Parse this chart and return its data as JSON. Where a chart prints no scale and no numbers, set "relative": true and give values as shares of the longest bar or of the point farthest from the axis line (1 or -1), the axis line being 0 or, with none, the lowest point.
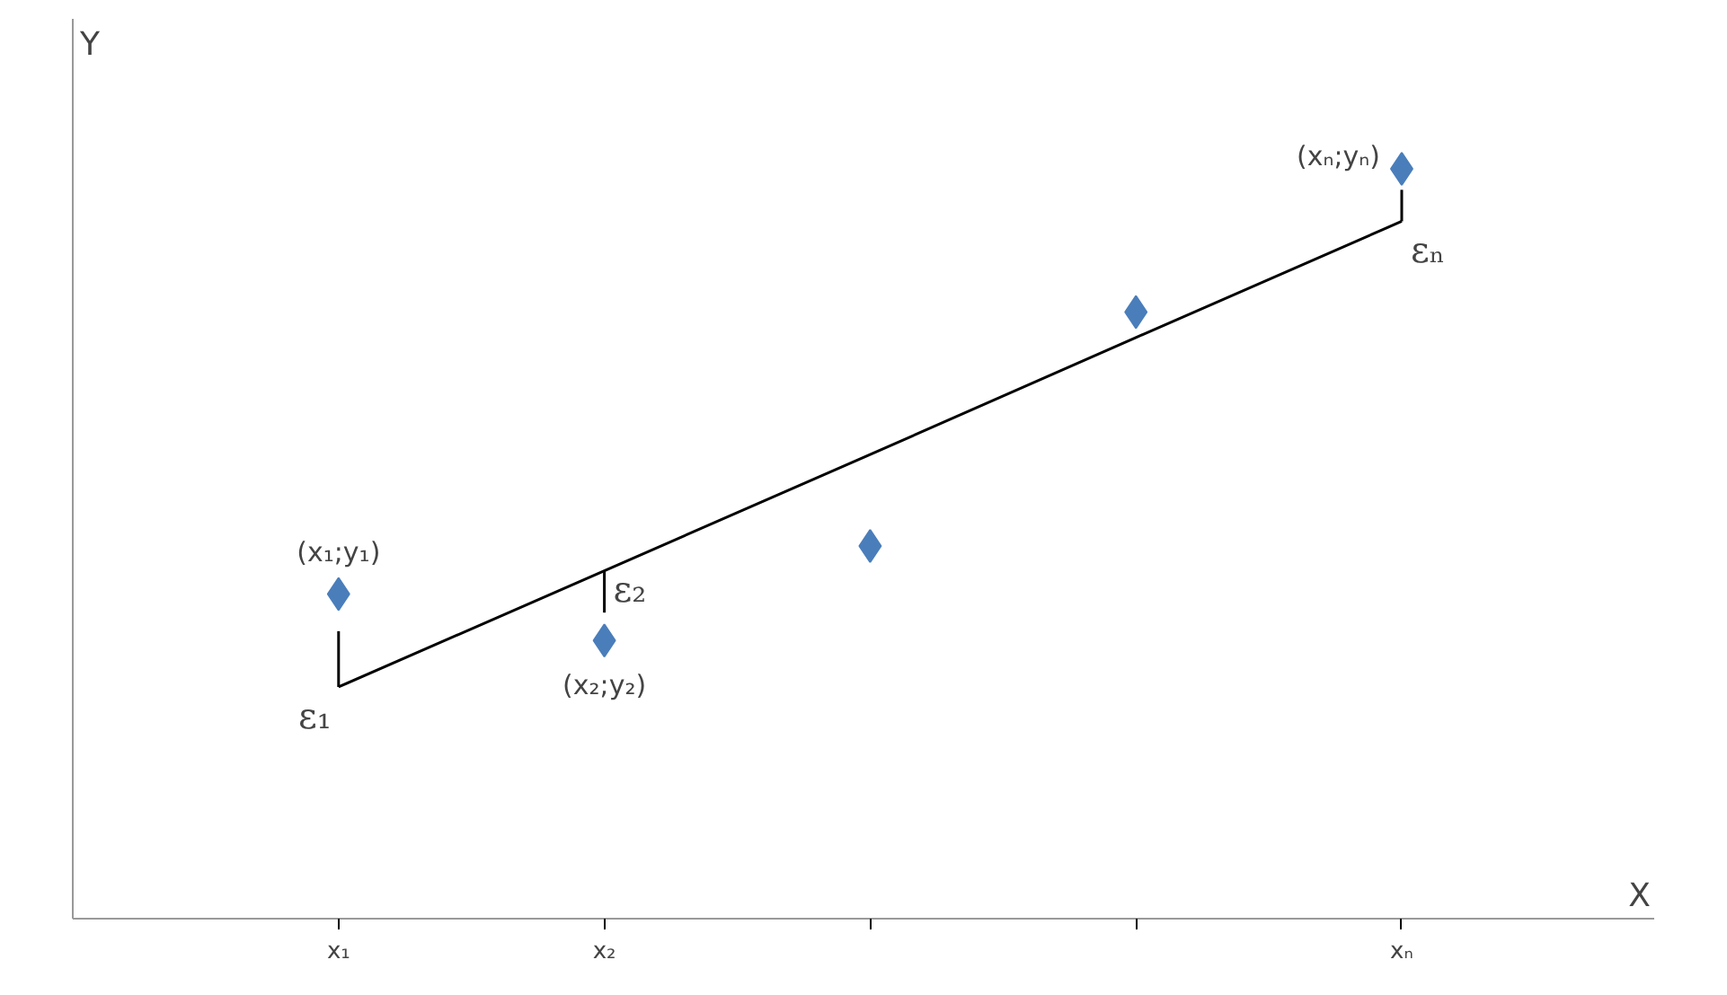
{
  "chart_data": {
    "type": "scatter",
    "xlabel": "X",
    "ylabel": "Y",
    "relative": true,
    "tick_labels": "x",
    "grid": false,
    "categories": [
      "x₁",
      "x₂",
      null,
      null,
      "xₙ"
    ],
    "series": [
      {
        "color": "#4a7ebb",
        "marker": "diamond",
        "values": [
          0.433,
          0.371,
          0.497,
          0.809,
          1.0
        ]
      },
      {
        "type": "line",
        "color": "#000000",
        "line_style": "solid",
        "values": [
          0.309,
          0.464,
          0.619,
          0.775,
          0.93
        ]
      }
    ],
    "annotations": [
      {
        "text": "(x₁;y₁)",
        "x": "x₁",
        "y": 0.433
      },
      {
        "text": "(x₂;y₂)",
        "x": "x₂",
        "y": 0.371
      },
      {
        "text": "(xₙ;yₙ)",
        "x": "xₙ",
        "y": 1.0
      },
      {
        "text": "ε₁",
        "x": "x₁",
        "y": 0.309
      },
      {
        "text": "ε₂",
        "x": "x₂",
        "y": 0.464
      },
      {
        "text": "εₙ",
        "x": "xₙ",
        "y": 0.93
      }
    ]
  }
}
